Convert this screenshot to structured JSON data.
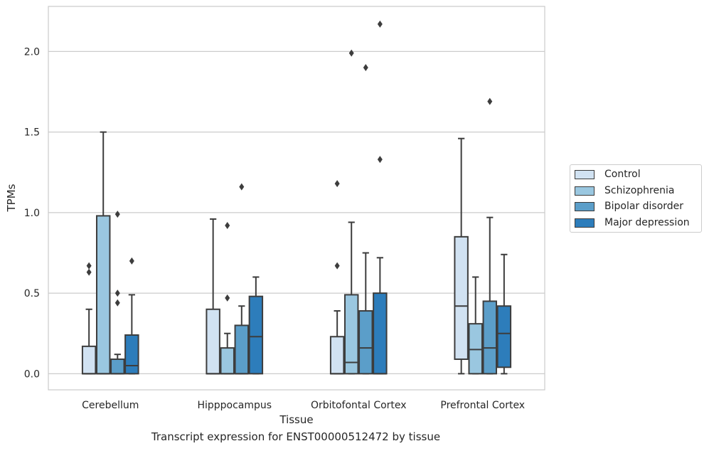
{
  "chart_data": {
    "type": "box",
    "title": "",
    "caption": "Transcript expression for ENST00000512472 by tissue",
    "xlabel": "Tissue",
    "ylabel": "TPMs",
    "ylim": [
      -0.1,
      2.28
    ],
    "yticks": [
      "0.0",
      "0.5",
      "1.0",
      "1.5",
      "2.0"
    ],
    "grid": true,
    "legend_position": "right",
    "categories": [
      "Cerebellum",
      "Hipppocampus",
      "Orbitofontal Cortex",
      "Prefrontal Cortex"
    ],
    "series": [
      {
        "name": "Control",
        "color": "#d1e2f2",
        "boxes": [
          {
            "min": 0.0,
            "q1": 0.0,
            "median": 0.0,
            "q3": 0.17,
            "max": 0.4,
            "outliers": [
              0.63,
              0.67
            ]
          },
          {
            "min": 0.0,
            "q1": 0.0,
            "median": 0.0,
            "q3": 0.4,
            "max": 0.96,
            "outliers": []
          },
          {
            "min": 0.0,
            "q1": 0.0,
            "median": 0.0,
            "q3": 0.23,
            "max": 0.39,
            "outliers": [
              0.67,
              1.18
            ]
          },
          {
            "min": 0.0,
            "q1": 0.09,
            "median": 0.42,
            "q3": 0.85,
            "max": 1.46,
            "outliers": []
          }
        ]
      },
      {
        "name": "Schizophrenia",
        "color": "#9ac7e0",
        "boxes": [
          {
            "min": 0.0,
            "q1": 0.0,
            "median": 0.0,
            "q3": 0.98,
            "max": 1.5,
            "outliers": []
          },
          {
            "min": 0.0,
            "q1": 0.0,
            "median": 0.0,
            "q3": 0.16,
            "max": 0.25,
            "outliers": [
              0.47,
              0.92
            ]
          },
          {
            "min": 0.0,
            "q1": 0.0,
            "median": 0.07,
            "q3": 0.49,
            "max": 0.94,
            "outliers": [
              1.99
            ]
          },
          {
            "min": 0.0,
            "q1": 0.0,
            "median": 0.15,
            "q3": 0.31,
            "max": 0.6,
            "outliers": []
          }
        ]
      },
      {
        "name": "Bipolar disorder",
        "color": "#5b9ec9",
        "boxes": [
          {
            "min": 0.0,
            "q1": 0.0,
            "median": 0.0,
            "q3": 0.09,
            "max": 0.12,
            "outliers": [
              0.44,
              0.5,
              0.99
            ]
          },
          {
            "min": 0.0,
            "q1": 0.0,
            "median": 0.0,
            "q3": 0.3,
            "max": 0.42,
            "outliers": [
              1.16
            ]
          },
          {
            "min": 0.0,
            "q1": 0.0,
            "median": 0.16,
            "q3": 0.39,
            "max": 0.75,
            "outliers": [
              1.9
            ]
          },
          {
            "min": 0.0,
            "q1": 0.0,
            "median": 0.16,
            "q3": 0.45,
            "max": 0.97,
            "outliers": [
              1.69
            ]
          }
        ]
      },
      {
        "name": "Major depression",
        "color": "#2d7dbb",
        "boxes": [
          {
            "min": 0.0,
            "q1": 0.0,
            "median": 0.05,
            "q3": 0.24,
            "max": 0.49,
            "outliers": [
              0.7
            ]
          },
          {
            "min": 0.0,
            "q1": 0.0,
            "median": 0.23,
            "q3": 0.48,
            "max": 0.6,
            "outliers": []
          },
          {
            "min": 0.0,
            "q1": 0.0,
            "median": 0.0,
            "q3": 0.5,
            "max": 0.72,
            "outliers": [
              1.33,
              2.17
            ]
          },
          {
            "min": 0.0,
            "q1": 0.04,
            "median": 0.25,
            "q3": 0.42,
            "max": 0.74,
            "outliers": []
          }
        ]
      }
    ]
  }
}
